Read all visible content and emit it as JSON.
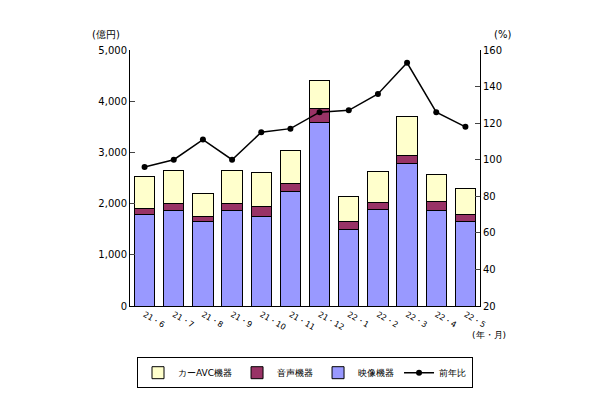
{
  "chart_data": {
    "type": "bar",
    "stacked": true,
    "categories": [
      "21・6",
      "21・7",
      "21・8",
      "21・9",
      "21・10",
      "21・11",
      "21・12",
      "22・1",
      "22・2",
      "22・3",
      "22・4",
      "22・5"
    ],
    "series": [
      {
        "name": "映像機器",
        "type": "bar",
        "color": "#9999ff",
        "values": [
          1780,
          1870,
          1650,
          1870,
          1750,
          2230,
          3580,
          1500,
          1890,
          2780,
          1860,
          1660
        ]
      },
      {
        "name": "音声機器",
        "type": "bar",
        "color": "#993366",
        "values": [
          130,
          140,
          90,
          140,
          200,
          160,
          270,
          150,
          130,
          150,
          180,
          120
        ]
      },
      {
        "name": "カーAVC機器",
        "type": "bar",
        "color": "#ffffcc",
        "values": [
          620,
          640,
          460,
          640,
          650,
          640,
          550,
          480,
          600,
          770,
          520,
          520
        ]
      },
      {
        "name": "前年比",
        "type": "line",
        "axis": "y2",
        "color": "#000000",
        "marker": "circle",
        "values": [
          96,
          100,
          111,
          100,
          115,
          117,
          126,
          127,
          136,
          153,
          126,
          118
        ]
      }
    ],
    "y_label": "(億円)",
    "y2_label": "(%)",
    "x_label": "(年・月)",
    "ylim": [
      0,
      5000
    ],
    "yticks": [
      0,
      {
        "value": 1000,
        "label": "1,000"
      },
      {
        "value": 2000,
        "label": "2,000"
      },
      {
        "value": 3000,
        "label": "3,000"
      },
      {
        "value": 4000,
        "label": "4,000"
      },
      {
        "value": 5000,
        "label": "5,000"
      }
    ],
    "y2lim": [
      20,
      160
    ],
    "y2ticks": [
      20,
      40,
      60,
      80,
      100,
      120,
      140,
      160
    ],
    "legend": "bottom",
    "grid": false
  }
}
